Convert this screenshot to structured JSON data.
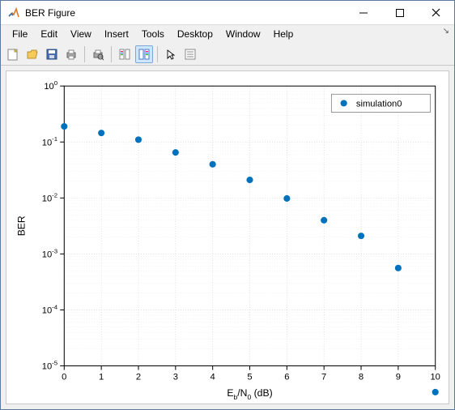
{
  "window": {
    "title": "BER Figure"
  },
  "menu": {
    "items": [
      "File",
      "Edit",
      "View",
      "Insert",
      "Tools",
      "Desktop",
      "Window",
      "Help"
    ]
  },
  "toolbar": {
    "icons": [
      "new-figure",
      "open",
      "save",
      "print",
      "print-preview",
      "edit-plot",
      "link-data",
      "pointer",
      "insert-colorbar"
    ]
  },
  "chart": {
    "type": "scatter-semilogy",
    "xlabel": "E_b/N_0 (dB)",
    "ylabel": "BER",
    "xlim": [
      0,
      10
    ],
    "ylim": null,
    "y_log_exponents": [
      0,
      -1,
      -2,
      -3,
      -4,
      -5
    ],
    "x_ticks": [
      0,
      1,
      2,
      3,
      4,
      5,
      6,
      7,
      8,
      9,
      10
    ],
    "marker_radius": 4,
    "marker_color": "#0072bd",
    "background_color": "#ffffff",
    "grid_color": "#d4d4d4",
    "minor_grid_color": "#e8e8e8",
    "axis_color": "#000000",
    "tick_font_size": 11,
    "label_font_size": 12,
    "legend": {
      "label": "simulation0",
      "position": "northeast",
      "box_stroke": "#808080",
      "box_fill": "#ffffff"
    },
    "series": {
      "name": "simulation0",
      "x": [
        0,
        1,
        2,
        3,
        4,
        5,
        6,
        7,
        8,
        9,
        10
      ],
      "y": [
        0.19,
        0.145,
        0.11,
        0.065,
        0.04,
        0.021,
        0.0098,
        0.004,
        0.0021,
        0.00056,
        3.4e-06
      ]
    }
  }
}
